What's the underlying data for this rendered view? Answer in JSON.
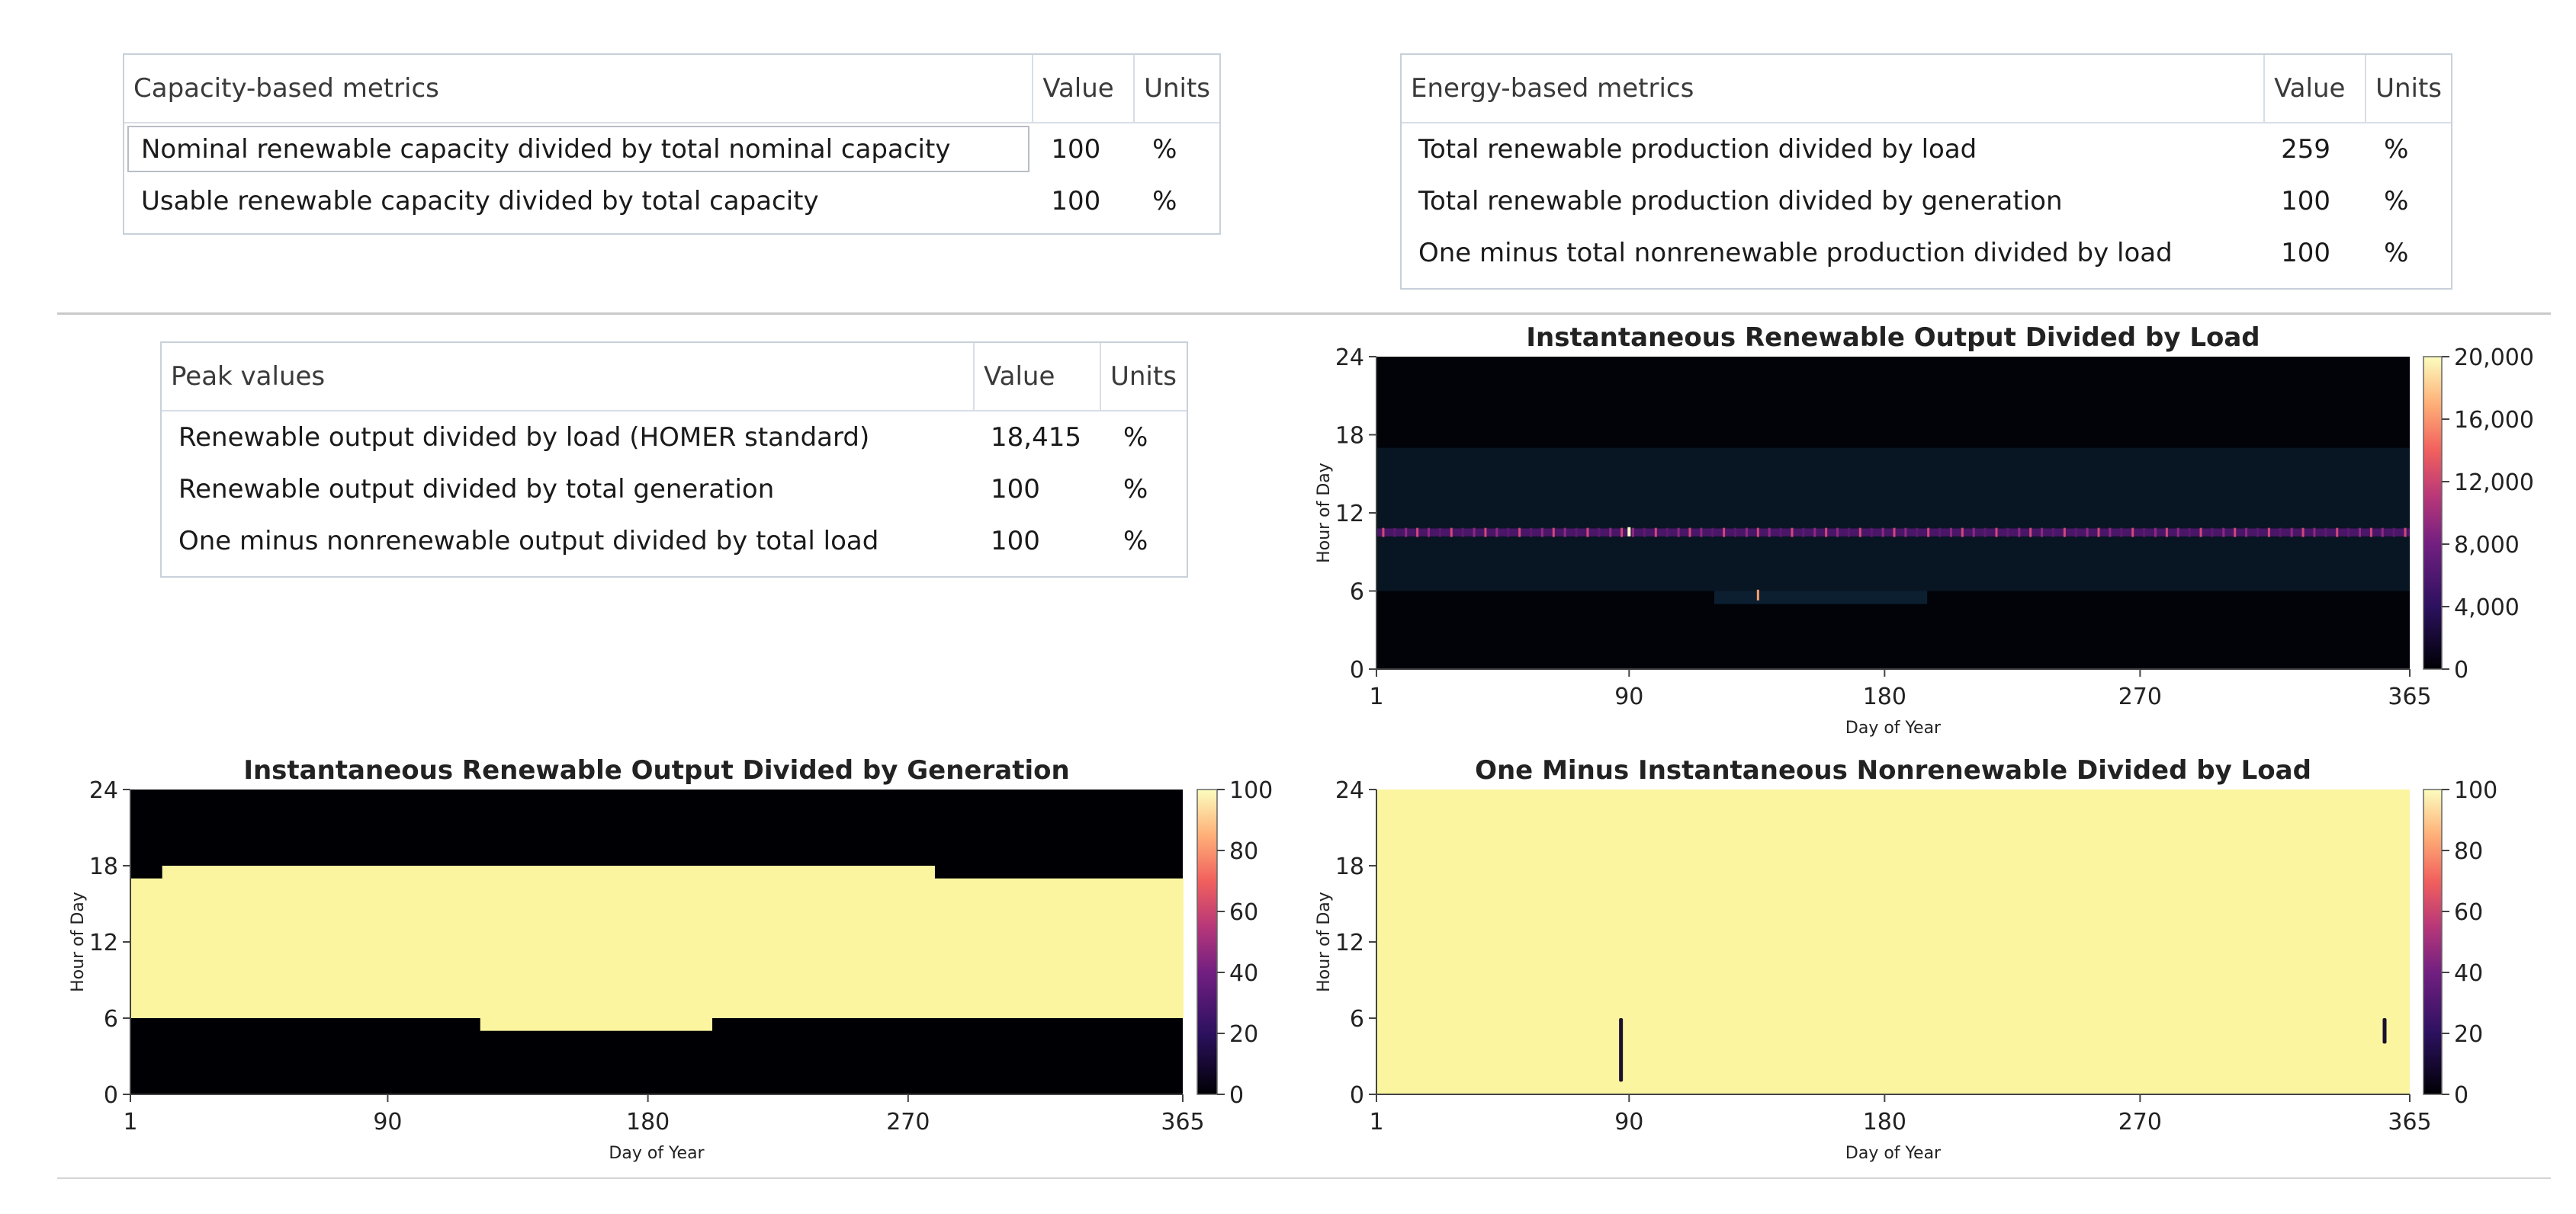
{
  "capacity_table": {
    "headers": [
      "Capacity-based metrics",
      "Value",
      "Units"
    ],
    "rows": [
      {
        "metric": "Nominal renewable capacity divided by total nominal capacity",
        "value": "100",
        "units": "%"
      },
      {
        "metric": "Usable renewable capacity divided by total capacity",
        "value": "100",
        "units": "%"
      }
    ]
  },
  "energy_table": {
    "headers": [
      "Energy-based metrics",
      "Value",
      "Units"
    ],
    "rows": [
      {
        "metric": "Total renewable production divided by load",
        "value": "259",
        "units": "%"
      },
      {
        "metric": "Total renewable production divided by generation",
        "value": "100",
        "units": "%"
      },
      {
        "metric": "One minus total nonrenewable production divided by load",
        "value": "100",
        "units": "%"
      }
    ]
  },
  "peak_table": {
    "headers": [
      "Peak values",
      "Value",
      "Units"
    ],
    "rows": [
      {
        "metric": "Renewable output divided by load (HOMER standard)",
        "value": "18,415",
        "units": "%"
      },
      {
        "metric": "Renewable output divided by total generation",
        "value": "100",
        "units": "%"
      },
      {
        "metric": "One minus nonrenewable output divided by total load",
        "value": "100",
        "units": "%"
      }
    ]
  },
  "chart_data": [
    {
      "type": "heatmap",
      "title": "Instantaneous Renewable Output Divided by Load",
      "xlabel": "Day of Year",
      "ylabel": "Hour of Day",
      "x_ticks": [
        "1",
        "90",
        "180",
        "270",
        "365"
      ],
      "y_ticks": [
        "0",
        "6",
        "12",
        "18",
        "24"
      ],
      "xlim": [
        1,
        365
      ],
      "ylim": [
        0,
        24
      ],
      "colorbar_ticks": [
        "0",
        "4,000",
        "8,000",
        "12,000",
        "16,000",
        "20,000"
      ],
      "colorbar_range": [
        0,
        20000
      ],
      "features": {
        "bright_band_hour": 10.5,
        "low_band_hours": [
          6,
          17
        ],
        "hotspot_day": 135,
        "hotspot_hour": 5.5
      }
    },
    {
      "type": "heatmap",
      "title": "Instantaneous Renewable Output Divided by Generation",
      "xlabel": "Day of Year",
      "ylabel": "Hour of Day",
      "x_ticks": [
        "1",
        "90",
        "180",
        "270",
        "365"
      ],
      "y_ticks": [
        "0",
        "6",
        "12",
        "18",
        "24"
      ],
      "xlim": [
        1,
        365
      ],
      "ylim": [
        0,
        24
      ],
      "colorbar_ticks": [
        "0",
        "20",
        "40",
        "60",
        "80",
        "100"
      ],
      "colorbar_range": [
        0,
        100
      ],
      "segments": [
        {
          "day_start": 1,
          "day_end": 12,
          "hour_start": 6,
          "hour_end": 17
        },
        {
          "day_start": 12,
          "day_end": 122,
          "hour_start": 6,
          "hour_end": 18
        },
        {
          "day_start": 122,
          "day_end": 202,
          "hour_start": 5,
          "hour_end": 18
        },
        {
          "day_start": 202,
          "day_end": 279,
          "hour_start": 6,
          "hour_end": 18
        },
        {
          "day_start": 279,
          "day_end": 365,
          "hour_start": 6,
          "hour_end": 17
        }
      ]
    },
    {
      "type": "heatmap",
      "title": "One Minus Instantaneous Nonrenewable Divided by Load",
      "xlabel": "Day of Year",
      "ylabel": "Hour of Day",
      "x_ticks": [
        "1",
        "90",
        "180",
        "270",
        "365"
      ],
      "y_ticks": [
        "0",
        "6",
        "12",
        "18",
        "24"
      ],
      "xlim": [
        1,
        365
      ],
      "ylim": [
        0,
        24
      ],
      "colorbar_ticks": [
        "0",
        "20",
        "40",
        "60",
        "80",
        "100"
      ],
      "colorbar_range": [
        0,
        100
      ],
      "dips": [
        {
          "day": 87,
          "hour_start": 1,
          "hour_end": 6
        },
        {
          "day": 356,
          "hour_start": 4,
          "hour_end": 6
        }
      ]
    }
  ],
  "colors": {
    "accent_yellow": "#fbf5a0",
    "cmap_top": "#fcfdbf",
    "cmap_bottom": "#000004"
  }
}
